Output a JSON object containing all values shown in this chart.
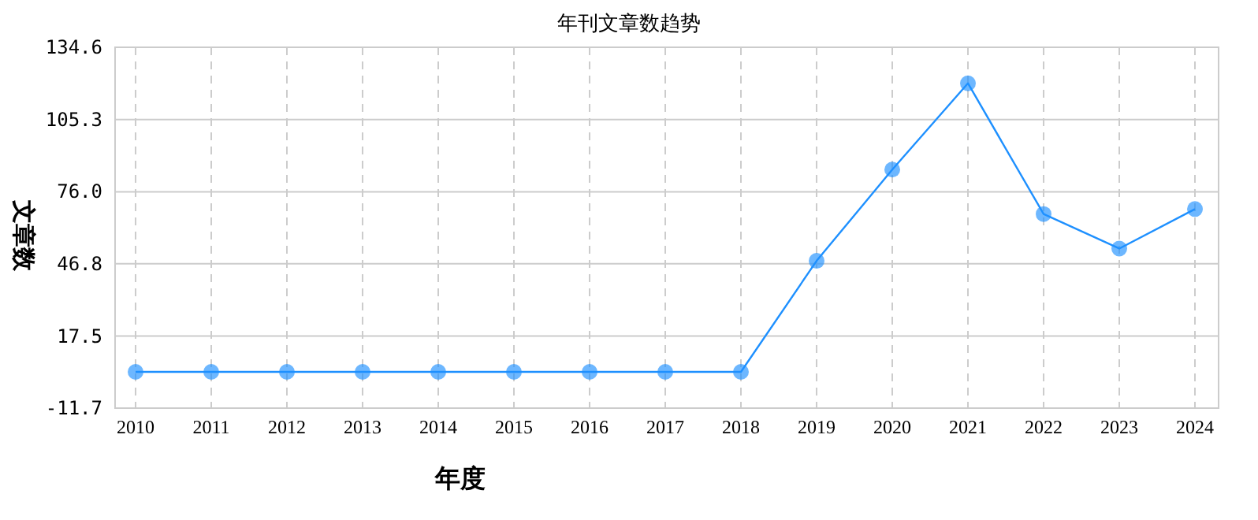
{
  "chart_data": {
    "type": "line",
    "title": "年刊文章数趋势",
    "xlabel": "年度",
    "ylabel": "文章数",
    "categories": [
      "2010",
      "2011",
      "2012",
      "2013",
      "2014",
      "2015",
      "2016",
      "2017",
      "2018",
      "2019",
      "2020",
      "2021",
      "2022",
      "2023",
      "2024"
    ],
    "series": [
      {
        "color": "#1e90ff",
        "values": [
          3,
          3,
          3,
          3,
          3,
          3,
          3,
          3,
          3,
          48,
          85,
          120,
          67,
          53,
          69
        ]
      }
    ],
    "ylim": [
      -11.7,
      134.6
    ],
    "yticks": [
      -11.7,
      17.5,
      46.8,
      {
        "value": 76,
        "label": "76.0"
      },
      105.3,
      134.6
    ],
    "grid": true,
    "marker": "circle",
    "line_style": "solid"
  }
}
